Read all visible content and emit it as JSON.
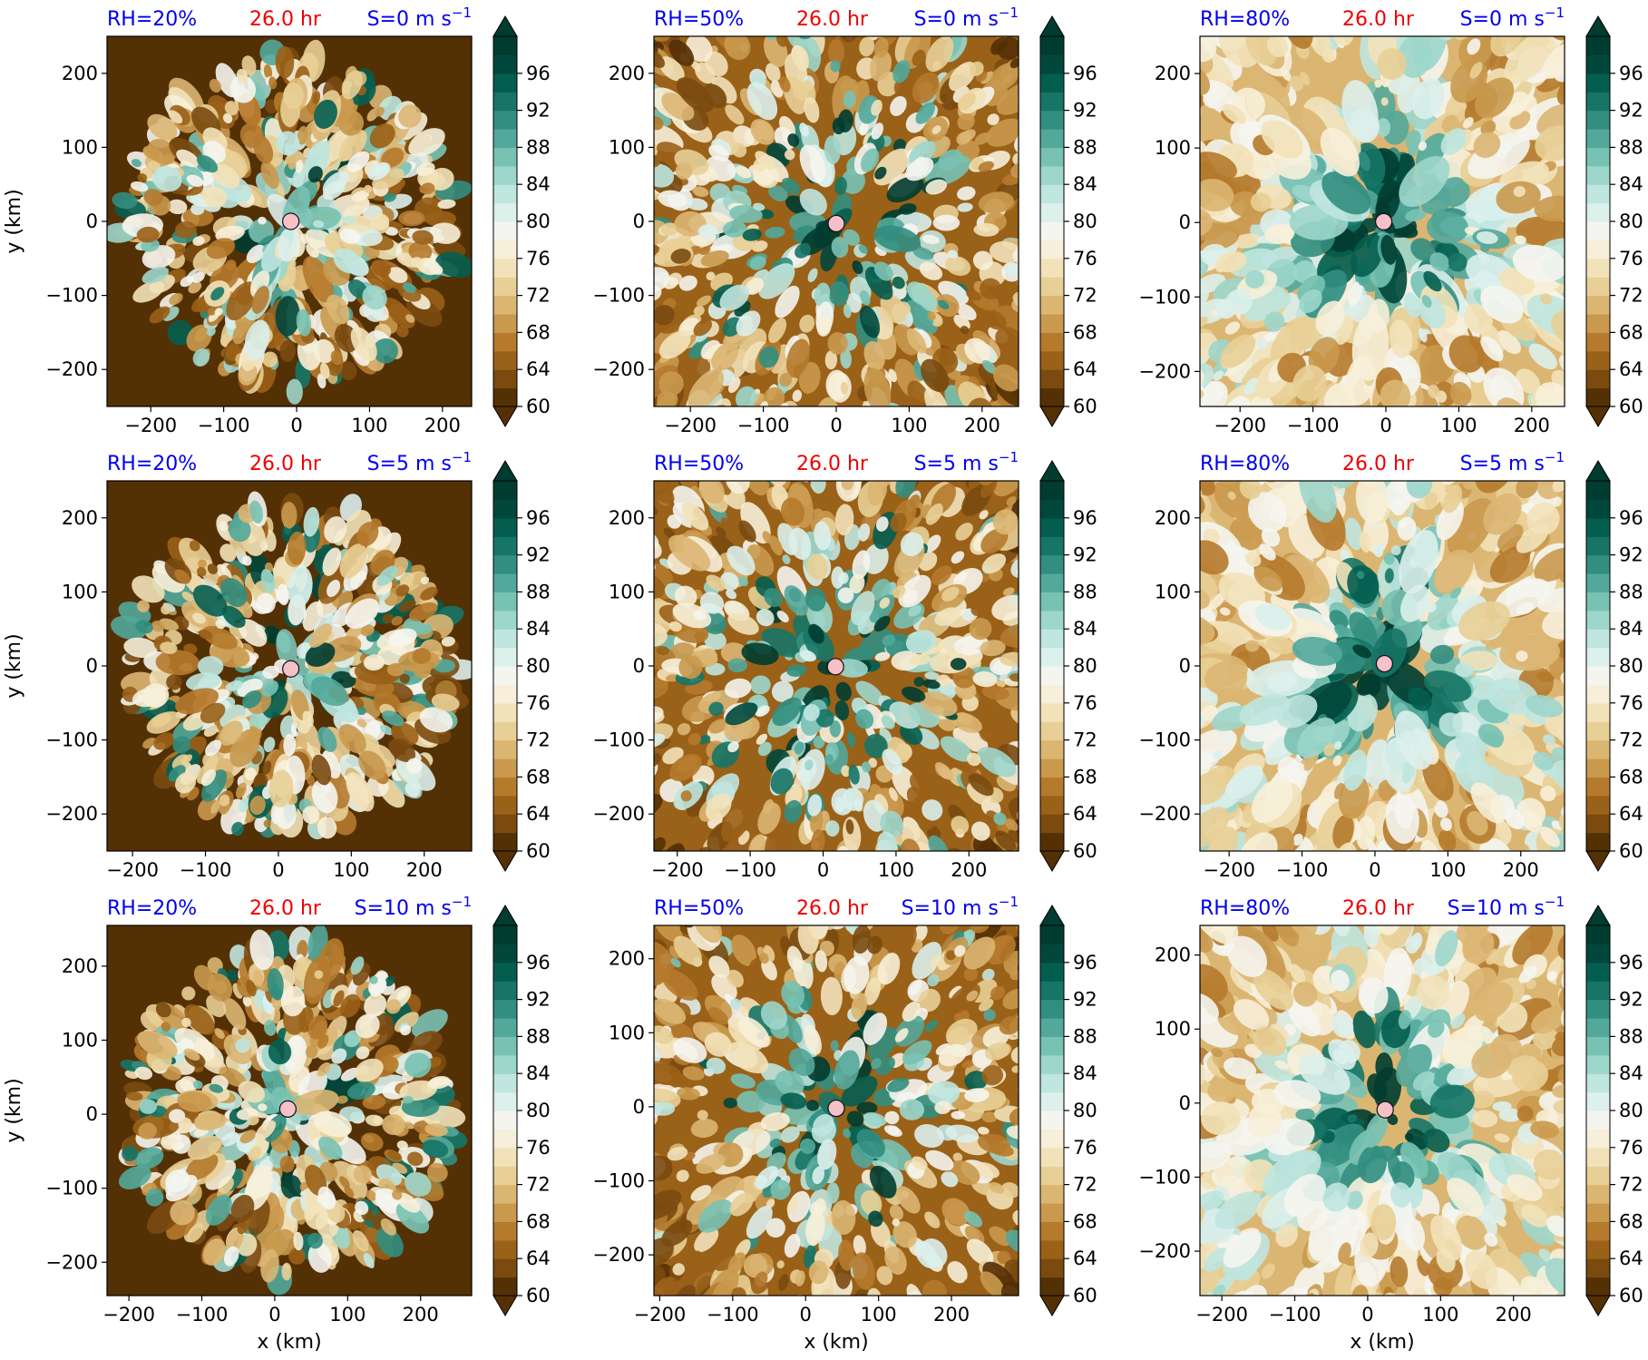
{
  "figure": {
    "description_labels": {
      "xlabel": "x (km)",
      "ylabel": "y (km)"
    },
    "colormap": {
      "name": "BrBG",
      "levels": [
        60,
        62,
        64,
        66,
        68,
        70,
        72,
        74,
        76,
        78,
        80,
        82,
        84,
        86,
        88,
        90,
        92,
        94,
        96,
        98
      ],
      "tick_labels": [
        "60",
        "64",
        "68",
        "72",
        "76",
        "80",
        "84",
        "88",
        "92",
        "96"
      ],
      "colors": [
        "#543005",
        "#7a4a0f",
        "#9a6118",
        "#b57a2c",
        "#c9994e",
        "#dbb673",
        "#e8cf96",
        "#f2e2b9",
        "#f7efd9",
        "#f5f5f0",
        "#dcf0ec",
        "#bfe6df",
        "#9dd6cb",
        "#78c2b4",
        "#52a99b",
        "#328e80",
        "#167567",
        "#045e50",
        "#01473b",
        "#003c30"
      ],
      "extend": "both"
    }
  },
  "panels": [
    {
      "rh": "RH=20%",
      "time": "26.0 hr",
      "shear": "S=0 m s",
      "shear_exp": "−1",
      "xticks": [
        "−200",
        "−100",
        "0",
        "100",
        "200"
      ],
      "yticks": [
        "200",
        "100",
        "0",
        "−100",
        "−200"
      ]
    },
    {
      "rh": "RH=50%",
      "time": "26.0 hr",
      "shear": "S=0 m s",
      "shear_exp": "−1",
      "xticks": [
        "−200",
        "−100",
        "0",
        "100",
        "200"
      ],
      "yticks": [
        "200",
        "100",
        "0",
        "−100",
        "−200"
      ]
    },
    {
      "rh": "RH=80%",
      "time": "26.0 hr",
      "shear": "S=0 m s",
      "shear_exp": "−1",
      "xticks": [
        "−200",
        "−100",
        "0",
        "100",
        "200"
      ],
      "yticks": [
        "200",
        "100",
        "0",
        "−100",
        "−200"
      ]
    },
    {
      "rh": "RH=20%",
      "time": "26.0 hr",
      "shear": "S=5 m s",
      "shear_exp": "−1",
      "xticks": [
        "−200",
        "−100",
        "0",
        "100",
        "200"
      ],
      "yticks": [
        "200",
        "100",
        "0",
        "−100",
        "−200"
      ]
    },
    {
      "rh": "RH=50%",
      "time": "26.0 hr",
      "shear": "S=5 m s",
      "shear_exp": "−1",
      "xticks": [
        "−200",
        "−100",
        "0",
        "100",
        "200"
      ],
      "yticks": [
        "200",
        "100",
        "0",
        "−100",
        "−200"
      ]
    },
    {
      "rh": "RH=80%",
      "time": "26.0 hr",
      "shear": "S=5 m s",
      "shear_exp": "−1",
      "xticks": [
        "−200",
        "−100",
        "0",
        "100",
        "200"
      ],
      "yticks": [
        "200",
        "100",
        "0",
        "−100",
        "−200"
      ]
    },
    {
      "rh": "RH=20%",
      "time": "26.0 hr",
      "shear": "S=10 m s",
      "shear_exp": "−1",
      "xticks": [
        "−200",
        "−100",
        "0",
        "100",
        "200"
      ],
      "yticks": [
        "200",
        "100",
        "0",
        "−100",
        "−200"
      ]
    },
    {
      "rh": "RH=50%",
      "time": "26.0 hr",
      "shear": "S=10 m s",
      "shear_exp": "−1",
      "xticks": [
        "−200",
        "−100",
        "0",
        "100",
        "200"
      ],
      "yticks": [
        "200",
        "100",
        "0",
        "−100",
        "−200"
      ]
    },
    {
      "rh": "RH=80%",
      "time": "26.0 hr",
      "shear": "S=10 m s",
      "shear_exp": "−1",
      "xticks": [
        "−200",
        "−100",
        "0",
        "100",
        "200"
      ],
      "yticks": [
        "200",
        "100",
        "0",
        "−100",
        "−200"
      ]
    }
  ],
  "chart_data": [
    {
      "type": "heatmap",
      "field": "relative humidity contours",
      "rh_label": "RH=20%",
      "time": "26.0 hr",
      "shear": "S=0 m s−1",
      "xlim": [
        -260,
        240
      ],
      "ylim": [
        -250,
        250
      ],
      "center": [
        -8,
        0
      ],
      "moisture": 0.2
    },
    {
      "type": "heatmap",
      "field": "relative humidity contours",
      "rh_label": "RH=50%",
      "time": "26.0 hr",
      "shear": "S=0 m s−1",
      "xlim": [
        -250,
        250
      ],
      "ylim": [
        -250,
        250
      ],
      "center": [
        0,
        -3
      ],
      "moisture": 0.5
    },
    {
      "type": "heatmap",
      "field": "relative humidity contours",
      "rh_label": "RH=80%",
      "time": "26.0 hr",
      "shear": "S=0 m s−1",
      "xlim": [
        -255,
        245
      ],
      "ylim": [
        -247,
        250
      ],
      "center": [
        -3,
        1
      ],
      "moisture": 0.8
    },
    {
      "type": "heatmap",
      "field": "relative humidity contours",
      "rh_label": "RH=20%",
      "time": "26.0 hr",
      "shear": "S=5 m s−1",
      "xlim": [
        -235,
        265
      ],
      "ylim": [
        -250,
        250
      ],
      "center": [
        17,
        -4
      ],
      "moisture": 0.2
    },
    {
      "type": "heatmap",
      "field": "relative humidity contours",
      "rh_label": "RH=50%",
      "time": "26.0 hr",
      "shear": "S=5 m s−1",
      "xlim": [
        -232,
        268
      ],
      "ylim": [
        -250,
        250
      ],
      "center": [
        17,
        -1
      ],
      "moisture": 0.5
    },
    {
      "type": "heatmap",
      "field": "relative humidity contours",
      "rh_label": "RH=80%",
      "time": "26.0 hr",
      "shear": "S=5 m s−1",
      "xlim": [
        -240,
        260
      ],
      "ylim": [
        -250,
        250
      ],
      "center": [
        13,
        3
      ],
      "moisture": 0.8
    },
    {
      "type": "heatmap",
      "field": "relative humidity contours",
      "rh_label": "RH=20%",
      "time": "26.0 hr",
      "shear": "S=10 m s−1",
      "xlim": [
        -230,
        270
      ],
      "ylim": [
        -245,
        255
      ],
      "center": [
        18,
        7
      ],
      "moisture": 0.2
    },
    {
      "type": "heatmap",
      "field": "relative humidity contours",
      "rh_label": "RH=50%",
      "time": "26.0 hr",
      "shear": "S=10 m s−1",
      "xlim": [
        -208,
        292
      ],
      "ylim": [
        -255,
        245
      ],
      "center": [
        42,
        -2
      ],
      "moisture": 0.5
    },
    {
      "type": "heatmap",
      "field": "relative humidity contours",
      "rh_label": "RH=80%",
      "time": "26.0 hr",
      "shear": "S=10 m s−1",
      "xlim": [
        -230,
        270
      ],
      "ylim": [
        -260,
        240
      ],
      "center": [
        24,
        -9
      ],
      "moisture": 0.8
    }
  ]
}
